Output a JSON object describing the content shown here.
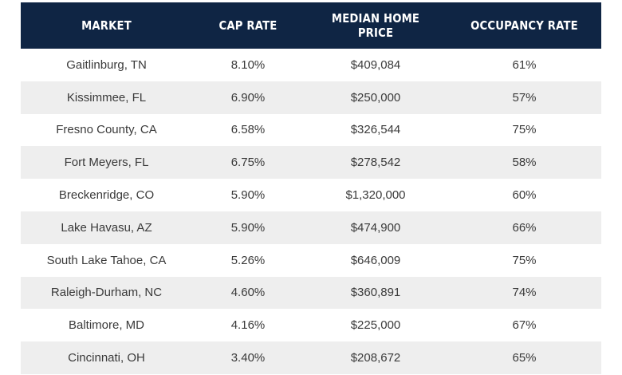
{
  "table": {
    "headers": [
      "MARKET",
      "CAP RATE",
      "MEDIAN HOME PRICE",
      "OCCUPANCY RATE"
    ],
    "rows": [
      [
        "Gaitlinburg, TN",
        "8.10%",
        "$409,084",
        "61%"
      ],
      [
        "Kissimmee, FL",
        "6.90%",
        "$250,000",
        "57%"
      ],
      [
        "Fresno County, CA",
        "6.58%",
        "$326,544",
        "75%"
      ],
      [
        "Fort Meyers, FL",
        "6.75%",
        "$278,542",
        "58%"
      ],
      [
        "Breckenridge, CO",
        "5.90%",
        "$1,320,000",
        "60%"
      ],
      [
        "Lake Havasu, AZ",
        "5.90%",
        "$474,900",
        "66%"
      ],
      [
        "South Lake Tahoe, CA",
        "5.26%",
        "$646,009",
        "75%"
      ],
      [
        "Raleigh-Durham, NC",
        "4.60%",
        "$360,891",
        "74%"
      ],
      [
        "Baltimore, MD",
        "4.16%",
        "$225,000",
        "67%"
      ],
      [
        "Cincinnati, OH",
        "3.40%",
        "$208,672",
        "65%"
      ]
    ]
  },
  "colors": {
    "header_background": "#0f2544",
    "header_text": "#ffffff",
    "stripe": "#eeeeee",
    "cell_text": "#3a3a3a"
  }
}
